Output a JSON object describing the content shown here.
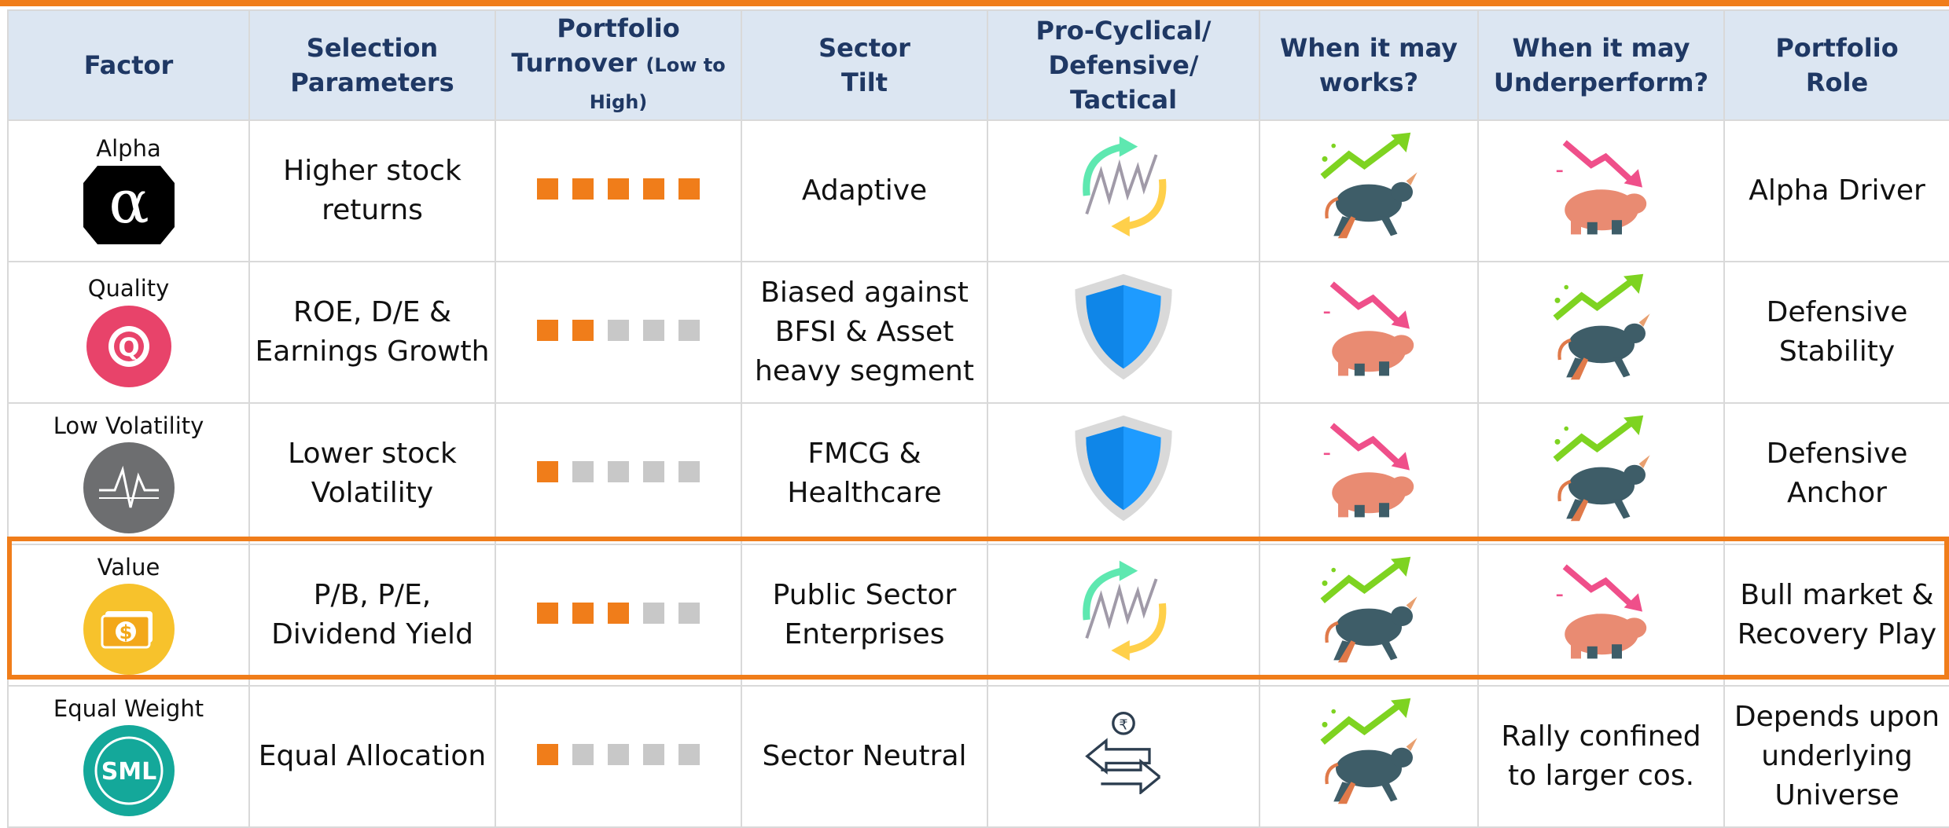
{
  "header": [
    "Factor",
    "Selection\nParameters",
    "Portfolio\nTurnover",
    "(Low to High)",
    "Sector\nTilt",
    "Pro-Cyclical/\nDefensive/ Tactical",
    "When it may\nworks?",
    "When it may\nUnderperform?",
    "Portfolio\nRole"
  ],
  "turnover_max": 5,
  "rows": [
    {
      "factor": "Alpha",
      "icon_text": "α",
      "selection": "Higher stock returns",
      "turnover": 5,
      "sector_tilt": "Adaptive",
      "role": "Alpha Driver"
    },
    {
      "factor": "Quality",
      "icon_text": "Q",
      "selection": "ROE, D/E & Earnings Growth",
      "turnover": 2,
      "sector_tilt": "Biased against BFSI & Asset heavy segment",
      "role": "Defensive Stability"
    },
    {
      "factor": "Low Volatility",
      "selection": "Lower stock Volatility",
      "turnover": 1,
      "sector_tilt": "FMCG & Healthcare",
      "role": "Defensive Anchor"
    },
    {
      "factor": "Value",
      "icon_text": "$",
      "selection": "P/B, P/E, Dividend Yield",
      "turnover": 3,
      "sector_tilt": "Public Sector Enterprises",
      "role": "Bull market & Recovery Play"
    },
    {
      "factor": "Equal Weight",
      "icon_text": "SML",
      "selection": "Equal Allocation",
      "turnover": 1,
      "sector_tilt": "Sector Neutral",
      "tactical_icon_text": "₹",
      "underperform": "Rally confined to larger cos.",
      "role": "Depends upon underlying Universe"
    }
  ]
}
